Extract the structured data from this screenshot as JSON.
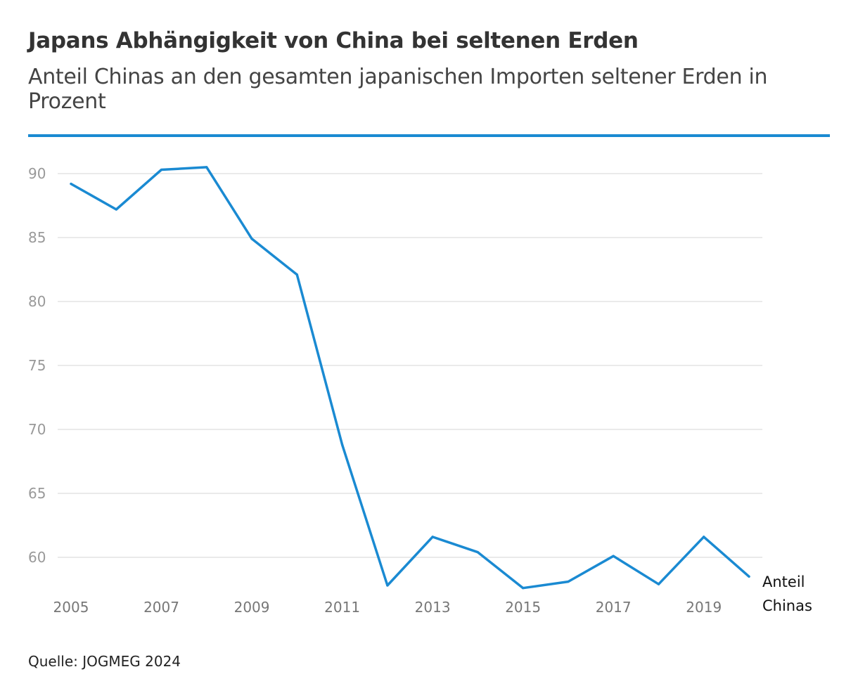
{
  "header": {
    "title": "Japans Abhängigkeit von China bei seltenen Erden",
    "subtitle": "Anteil Chinas an den gesamten japanischen Importen seltener Erden in Prozent"
  },
  "footer": {
    "source": "Quelle: JOGMEG 2024"
  },
  "chart_data": {
    "type": "line",
    "title": "Japans Abhängigkeit von China bei seltenen Erden",
    "subtitle": "Anteil Chinas an den gesamten japanischen Importen seltener Erden in Prozent",
    "x": [
      2005,
      2006,
      2007,
      2008,
      2009,
      2010,
      2011,
      2012,
      2013,
      2014,
      2015,
      2016,
      2017,
      2018,
      2019,
      2020
    ],
    "series": [
      {
        "name": "Anteil Chinas",
        "values": [
          89.2,
          87.2,
          90.3,
          90.5,
          84.9,
          82.1,
          68.8,
          57.8,
          61.6,
          60.4,
          57.6,
          58.1,
          60.1,
          57.9,
          61.6,
          58.5
        ]
      }
    ],
    "series_label_lines": [
      "Anteil",
      "Chinas"
    ],
    "x_ticks": [
      2005,
      2007,
      2009,
      2011,
      2013,
      2015,
      2017,
      2019
    ],
    "y_ticks": [
      60,
      65,
      70,
      75,
      80,
      85,
      90
    ],
    "xlim": [
      2005,
      2020
    ],
    "ylim": [
      57.6,
      90.5
    ],
    "grid": "horizontal",
    "colors": {
      "line": "#1a8ad2",
      "grid": "#dddddd",
      "rule": "#1a8ad2"
    }
  }
}
